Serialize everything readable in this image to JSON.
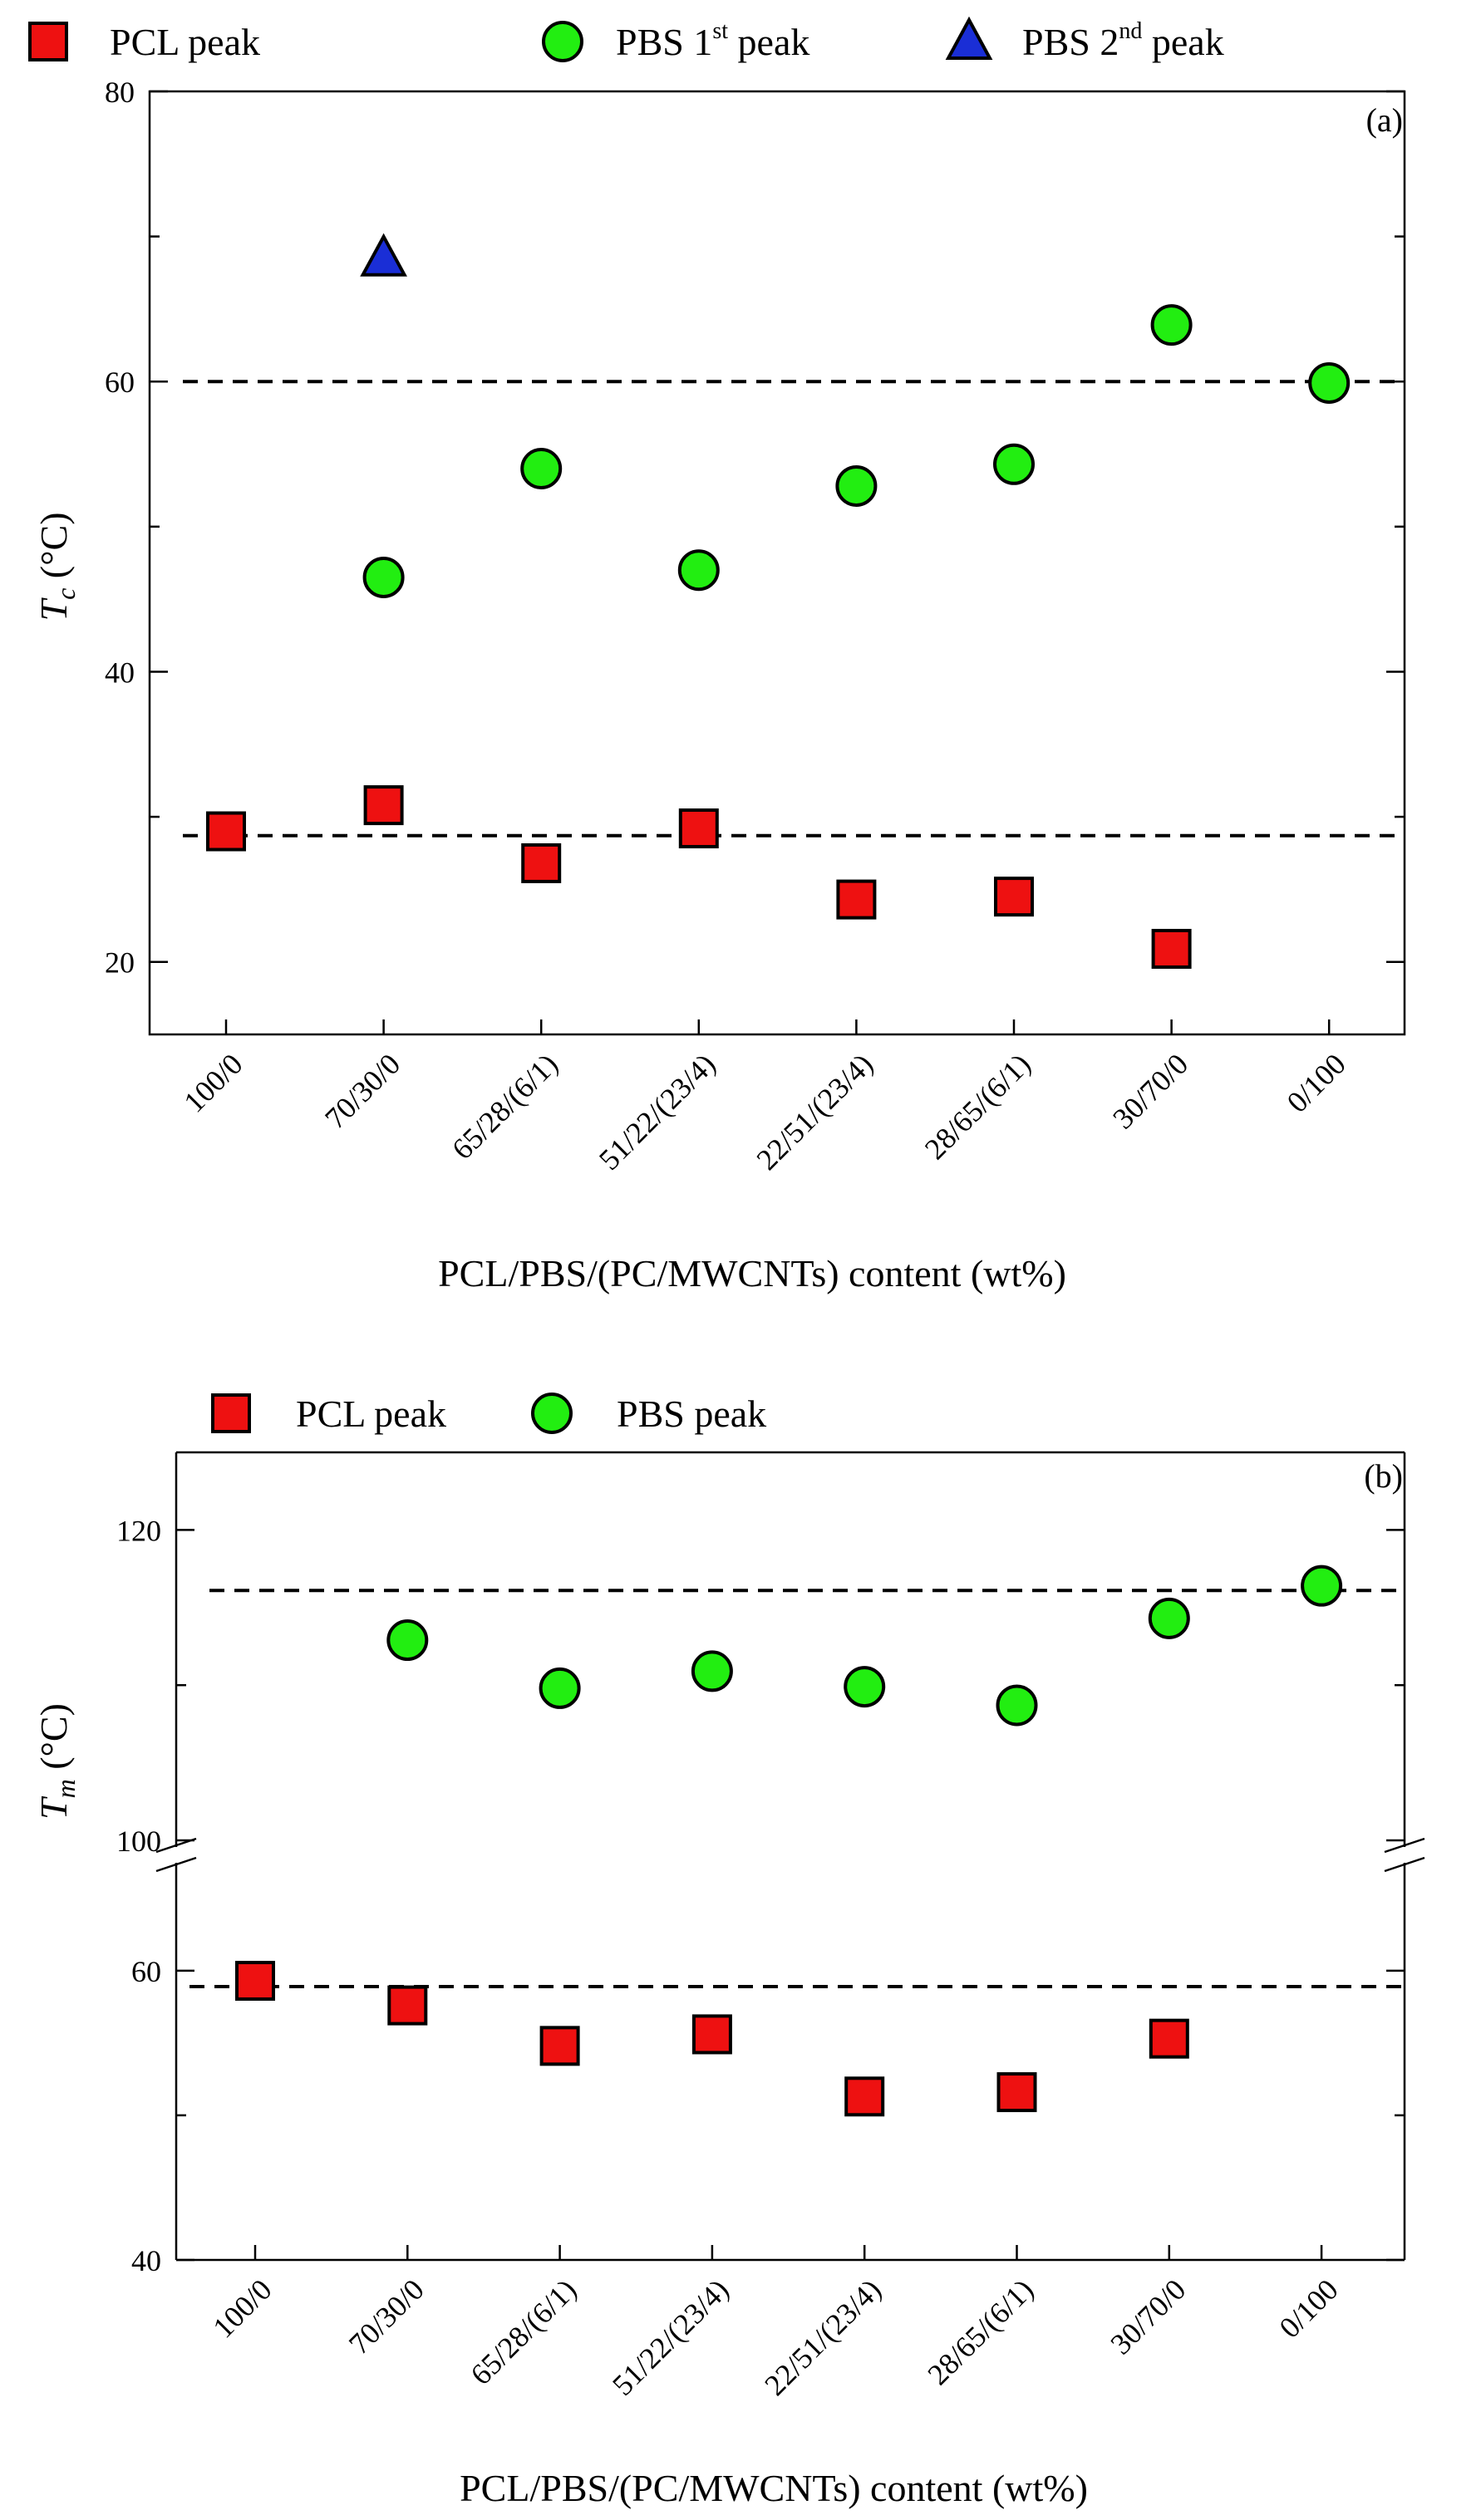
{
  "chart_data": [
    {
      "type": "scatter",
      "panel_label": "(a)",
      "ylabel_main": "T",
      "ylabel_sub": "c",
      "ylabel_unit": " (°C)",
      "xlabel": "PCL/PBS/(PC/MWCNTs) content (wt%)",
      "ylim": [
        15,
        80
      ],
      "yticks": [
        20,
        40,
        60,
        80
      ],
      "y_minor_ticks": [
        30,
        50,
        70
      ],
      "categories": [
        "100/0",
        "70/30/0",
        "65/28/(6/1)",
        "51/22/(23/4)",
        "22/51/(23/4)",
        "28/65/(6/1)",
        "30/70/0",
        "0/100"
      ],
      "reference_lines": [
        60,
        28.7
      ],
      "legend": [
        {
          "marker": "square",
          "text": "PCL peak",
          "sup": ""
        },
        {
          "marker": "circle",
          "text": "PBS 1",
          "sup": "st",
          "tail": " peak"
        },
        {
          "marker": "triangle",
          "text": "PBS 2",
          "sup": "nd",
          "tail": " peak"
        }
      ],
      "series": [
        {
          "name": "PCL peak",
          "marker": "square",
          "color": "#ee1111",
          "values": [
            29.0,
            30.8,
            26.8,
            29.2,
            24.3,
            24.5,
            20.9,
            null
          ]
        },
        {
          "name": "PBS 1st peak",
          "marker": "circle",
          "color": "#22ee11",
          "values": [
            null,
            46.5,
            54.0,
            47.0,
            52.8,
            54.3,
            63.9,
            59.9
          ]
        },
        {
          "name": "PBS 2nd peak",
          "marker": "triangle",
          "color": "#1a2ed6",
          "values": [
            null,
            68.5,
            null,
            null,
            null,
            null,
            null,
            null
          ]
        }
      ]
    },
    {
      "type": "scatter",
      "panel_label": "(b)",
      "ylabel_main": "T",
      "ylabel_sub": "m",
      "ylabel_unit": " (°C)",
      "xlabel": "PCL/PBS/(PC/MWCNTs) content (wt%)",
      "broken_axis": true,
      "upper_ylim": [
        100,
        125
      ],
      "upper_yticks": [
        100,
        120
      ],
      "upper_minor_ticks": [
        110
      ],
      "lower_ylim": [
        40,
        67
      ],
      "lower_yticks": [
        40,
        60
      ],
      "lower_minor_ticks": [
        50
      ],
      "categories": [
        "100/0",
        "70/30/0",
        "65/28/(6/1)",
        "51/22/(23/4)",
        "22/51/(23/4)",
        "28/65/(6/1)",
        "30/70/0",
        "0/100"
      ],
      "reference_lines": [
        116.1,
        58.9
      ],
      "legend": [
        {
          "marker": "square",
          "text": "PCL peak"
        },
        {
          "marker": "circle",
          "text": "PBS peak"
        }
      ],
      "series": [
        {
          "name": "PCL peak",
          "marker": "square",
          "color": "#ee1111",
          "values": [
            59.3,
            57.6,
            54.8,
            55.6,
            51.3,
            51.6,
            55.3,
            null
          ]
        },
        {
          "name": "PBS peak",
          "marker": "circle",
          "color": "#22ee11",
          "values": [
            null,
            112.9,
            109.8,
            110.9,
            109.9,
            108.7,
            114.3,
            116.4
          ]
        }
      ]
    }
  ]
}
